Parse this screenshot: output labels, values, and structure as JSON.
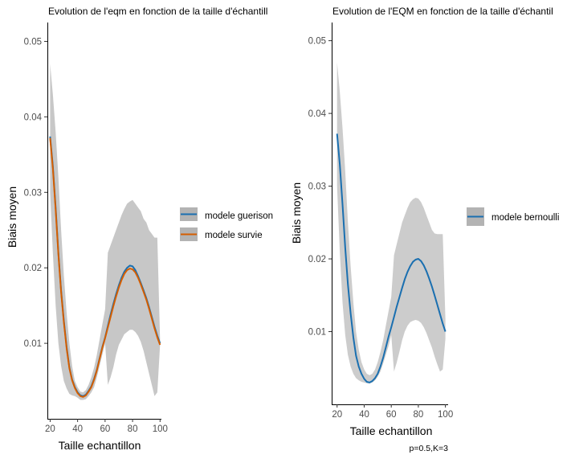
{
  "chart_data": [
    {
      "type": "line",
      "title": "Evolution de l'eqm en fonction de la taille d'échantill",
      "xlabel": "Taille echantillon",
      "ylabel": "Biais moyen",
      "xlim": [
        18,
        101
      ],
      "ylim": [
        0.0,
        0.0525
      ],
      "x_ticks": [
        20,
        40,
        60,
        80,
        100
      ],
      "y_ticks": [
        0.01,
        0.02,
        0.03,
        0.04,
        0.05
      ],
      "y_tick_labels": [
        "0.01",
        "0.02",
        "0.03",
        "0.04",
        "0.05"
      ],
      "grid": false,
      "legend": "right",
      "x": [
        20,
        22,
        24,
        26,
        28,
        30,
        32,
        34,
        36,
        38,
        40,
        42,
        44,
        46,
        48,
        50,
        52,
        54,
        56,
        58,
        60,
        62,
        64,
        66,
        68,
        70,
        72,
        74,
        76,
        78,
        80,
        82,
        84,
        86,
        88,
        90,
        92,
        94,
        96,
        98,
        100
      ],
      "band": {
        "upper": [
          0.047,
          0.043,
          0.038,
          0.032,
          0.025,
          0.019,
          0.014,
          0.01,
          0.007,
          0.005,
          0.0042,
          0.0036,
          0.0035,
          0.0038,
          0.0045,
          0.0055,
          0.0068,
          0.0085,
          0.0105,
          0.0125,
          0.0145,
          0.022,
          0.023,
          0.024,
          0.025,
          0.026,
          0.027,
          0.0278,
          0.0285,
          0.0288,
          0.029,
          0.0285,
          0.028,
          0.0275,
          0.0265,
          0.026,
          0.025,
          0.0245,
          0.024,
          0.024,
          0.0105
        ],
        "lower": [
          0.03,
          0.022,
          0.015,
          0.01,
          0.007,
          0.005,
          0.004,
          0.0033,
          0.0031,
          0.003,
          0.0028,
          0.0025,
          0.0025,
          0.0026,
          0.003,
          0.0035,
          0.0042,
          0.0055,
          0.007,
          0.0085,
          0.01,
          0.0045,
          0.0055,
          0.0068,
          0.0085,
          0.0098,
          0.0105,
          0.0112,
          0.0115,
          0.0118,
          0.0118,
          0.0115,
          0.011,
          0.0102,
          0.009,
          0.0075,
          0.006,
          0.0045,
          0.003,
          0.0035,
          0.0098
        ]
      },
      "series": [
        {
          "name": "modele guerison",
          "color": "#1a6fb0",
          "values": [
            0.0374,
            0.0335,
            0.028,
            0.022,
            0.017,
            0.013,
            0.0095,
            0.0068,
            0.0052,
            0.0042,
            0.0035,
            0.0031,
            0.003,
            0.0032,
            0.0037,
            0.0043,
            0.0053,
            0.0065,
            0.008,
            0.0095,
            0.0108,
            0.0123,
            0.0138,
            0.0152,
            0.0165,
            0.0177,
            0.0187,
            0.0195,
            0.02,
            0.0203,
            0.0202,
            0.0197,
            0.0189,
            0.018,
            0.017,
            0.016,
            0.0148,
            0.0135,
            0.0122,
            0.011,
            0.01
          ]
        },
        {
          "name": "modele survie",
          "color": "#d55e00",
          "values": [
            0.0372,
            0.0332,
            0.0277,
            0.0218,
            0.0168,
            0.0128,
            0.0093,
            0.0067,
            0.0051,
            0.0041,
            0.0034,
            0.003,
            0.0029,
            0.0031,
            0.0036,
            0.0042,
            0.0052,
            0.0064,
            0.0079,
            0.0094,
            0.0107,
            0.0121,
            0.0135,
            0.0149,
            0.0162,
            0.0174,
            0.0184,
            0.0192,
            0.0197,
            0.0199,
            0.0198,
            0.0194,
            0.0187,
            0.0178,
            0.0168,
            0.0158,
            0.0146,
            0.0133,
            0.012,
            0.0108,
            0.0098
          ]
        }
      ]
    },
    {
      "type": "line",
      "title": "Evolution de l'EQM en fonction de la taille d'échantil",
      "xlabel": "Taille echantillon",
      "ylabel": "Biais moyen",
      "xlim": [
        16,
        102
      ],
      "ylim": [
        0.0,
        0.0525
      ],
      "x_ticks": [
        20,
        40,
        60,
        80,
        100
      ],
      "y_ticks": [
        0.01,
        0.02,
        0.03,
        0.04,
        0.05
      ],
      "y_tick_labels": [
        "0.01",
        "0.02",
        "0.03",
        "0.04",
        "0.05"
      ],
      "grid": false,
      "legend": "right",
      "caption": "p=0.5,K=3",
      "x": [
        20,
        22,
        24,
        26,
        28,
        30,
        32,
        34,
        36,
        38,
        40,
        42,
        44,
        46,
        48,
        50,
        52,
        54,
        56,
        58,
        60,
        62,
        64,
        66,
        68,
        70,
        72,
        74,
        76,
        78,
        80,
        82,
        84,
        86,
        88,
        90,
        92,
        94,
        96,
        98,
        100
      ],
      "band": {
        "upper": [
          0.047,
          0.043,
          0.038,
          0.032,
          0.025,
          0.019,
          0.014,
          0.01,
          0.0075,
          0.0058,
          0.0048,
          0.0042,
          0.004,
          0.0042,
          0.0048,
          0.0058,
          0.0072,
          0.0088,
          0.0108,
          0.0128,
          0.0148,
          0.0205,
          0.022,
          0.0235,
          0.025,
          0.026,
          0.027,
          0.0278,
          0.0282,
          0.0284,
          0.0283,
          0.0278,
          0.027,
          0.026,
          0.025,
          0.024,
          0.0235,
          0.0234,
          0.0234,
          0.0234,
          0.0118
        ],
        "lower": [
          0.03,
          0.021,
          0.014,
          0.0095,
          0.0068,
          0.0052,
          0.0042,
          0.0036,
          0.0033,
          0.0031,
          0.003,
          0.0029,
          0.0029,
          0.003,
          0.0033,
          0.0038,
          0.0045,
          0.0056,
          0.0068,
          0.008,
          0.0095,
          0.0045,
          0.0057,
          0.0072,
          0.0088,
          0.01,
          0.0108,
          0.0113,
          0.0115,
          0.0116,
          0.0115,
          0.0112,
          0.0106,
          0.0098,
          0.0088,
          0.0078,
          0.0066,
          0.0055,
          0.0045,
          0.0048,
          0.009
        ]
      },
      "series": [
        {
          "name": "modele bernoulli",
          "color": "#1a6fb0",
          "values": [
            0.0372,
            0.033,
            0.0275,
            0.0215,
            0.0165,
            0.0125,
            0.0092,
            0.0067,
            0.0052,
            0.0042,
            0.0035,
            0.0031,
            0.003,
            0.0032,
            0.0036,
            0.0042,
            0.0052,
            0.0064,
            0.0078,
            0.0093,
            0.0106,
            0.012,
            0.0134,
            0.0147,
            0.016,
            0.0172,
            0.0182,
            0.019,
            0.0196,
            0.0199,
            0.02,
            0.0197,
            0.0191,
            0.0183,
            0.0173,
            0.0162,
            0.015,
            0.0137,
            0.0124,
            0.0111,
            0.01
          ]
        }
      ]
    }
  ]
}
